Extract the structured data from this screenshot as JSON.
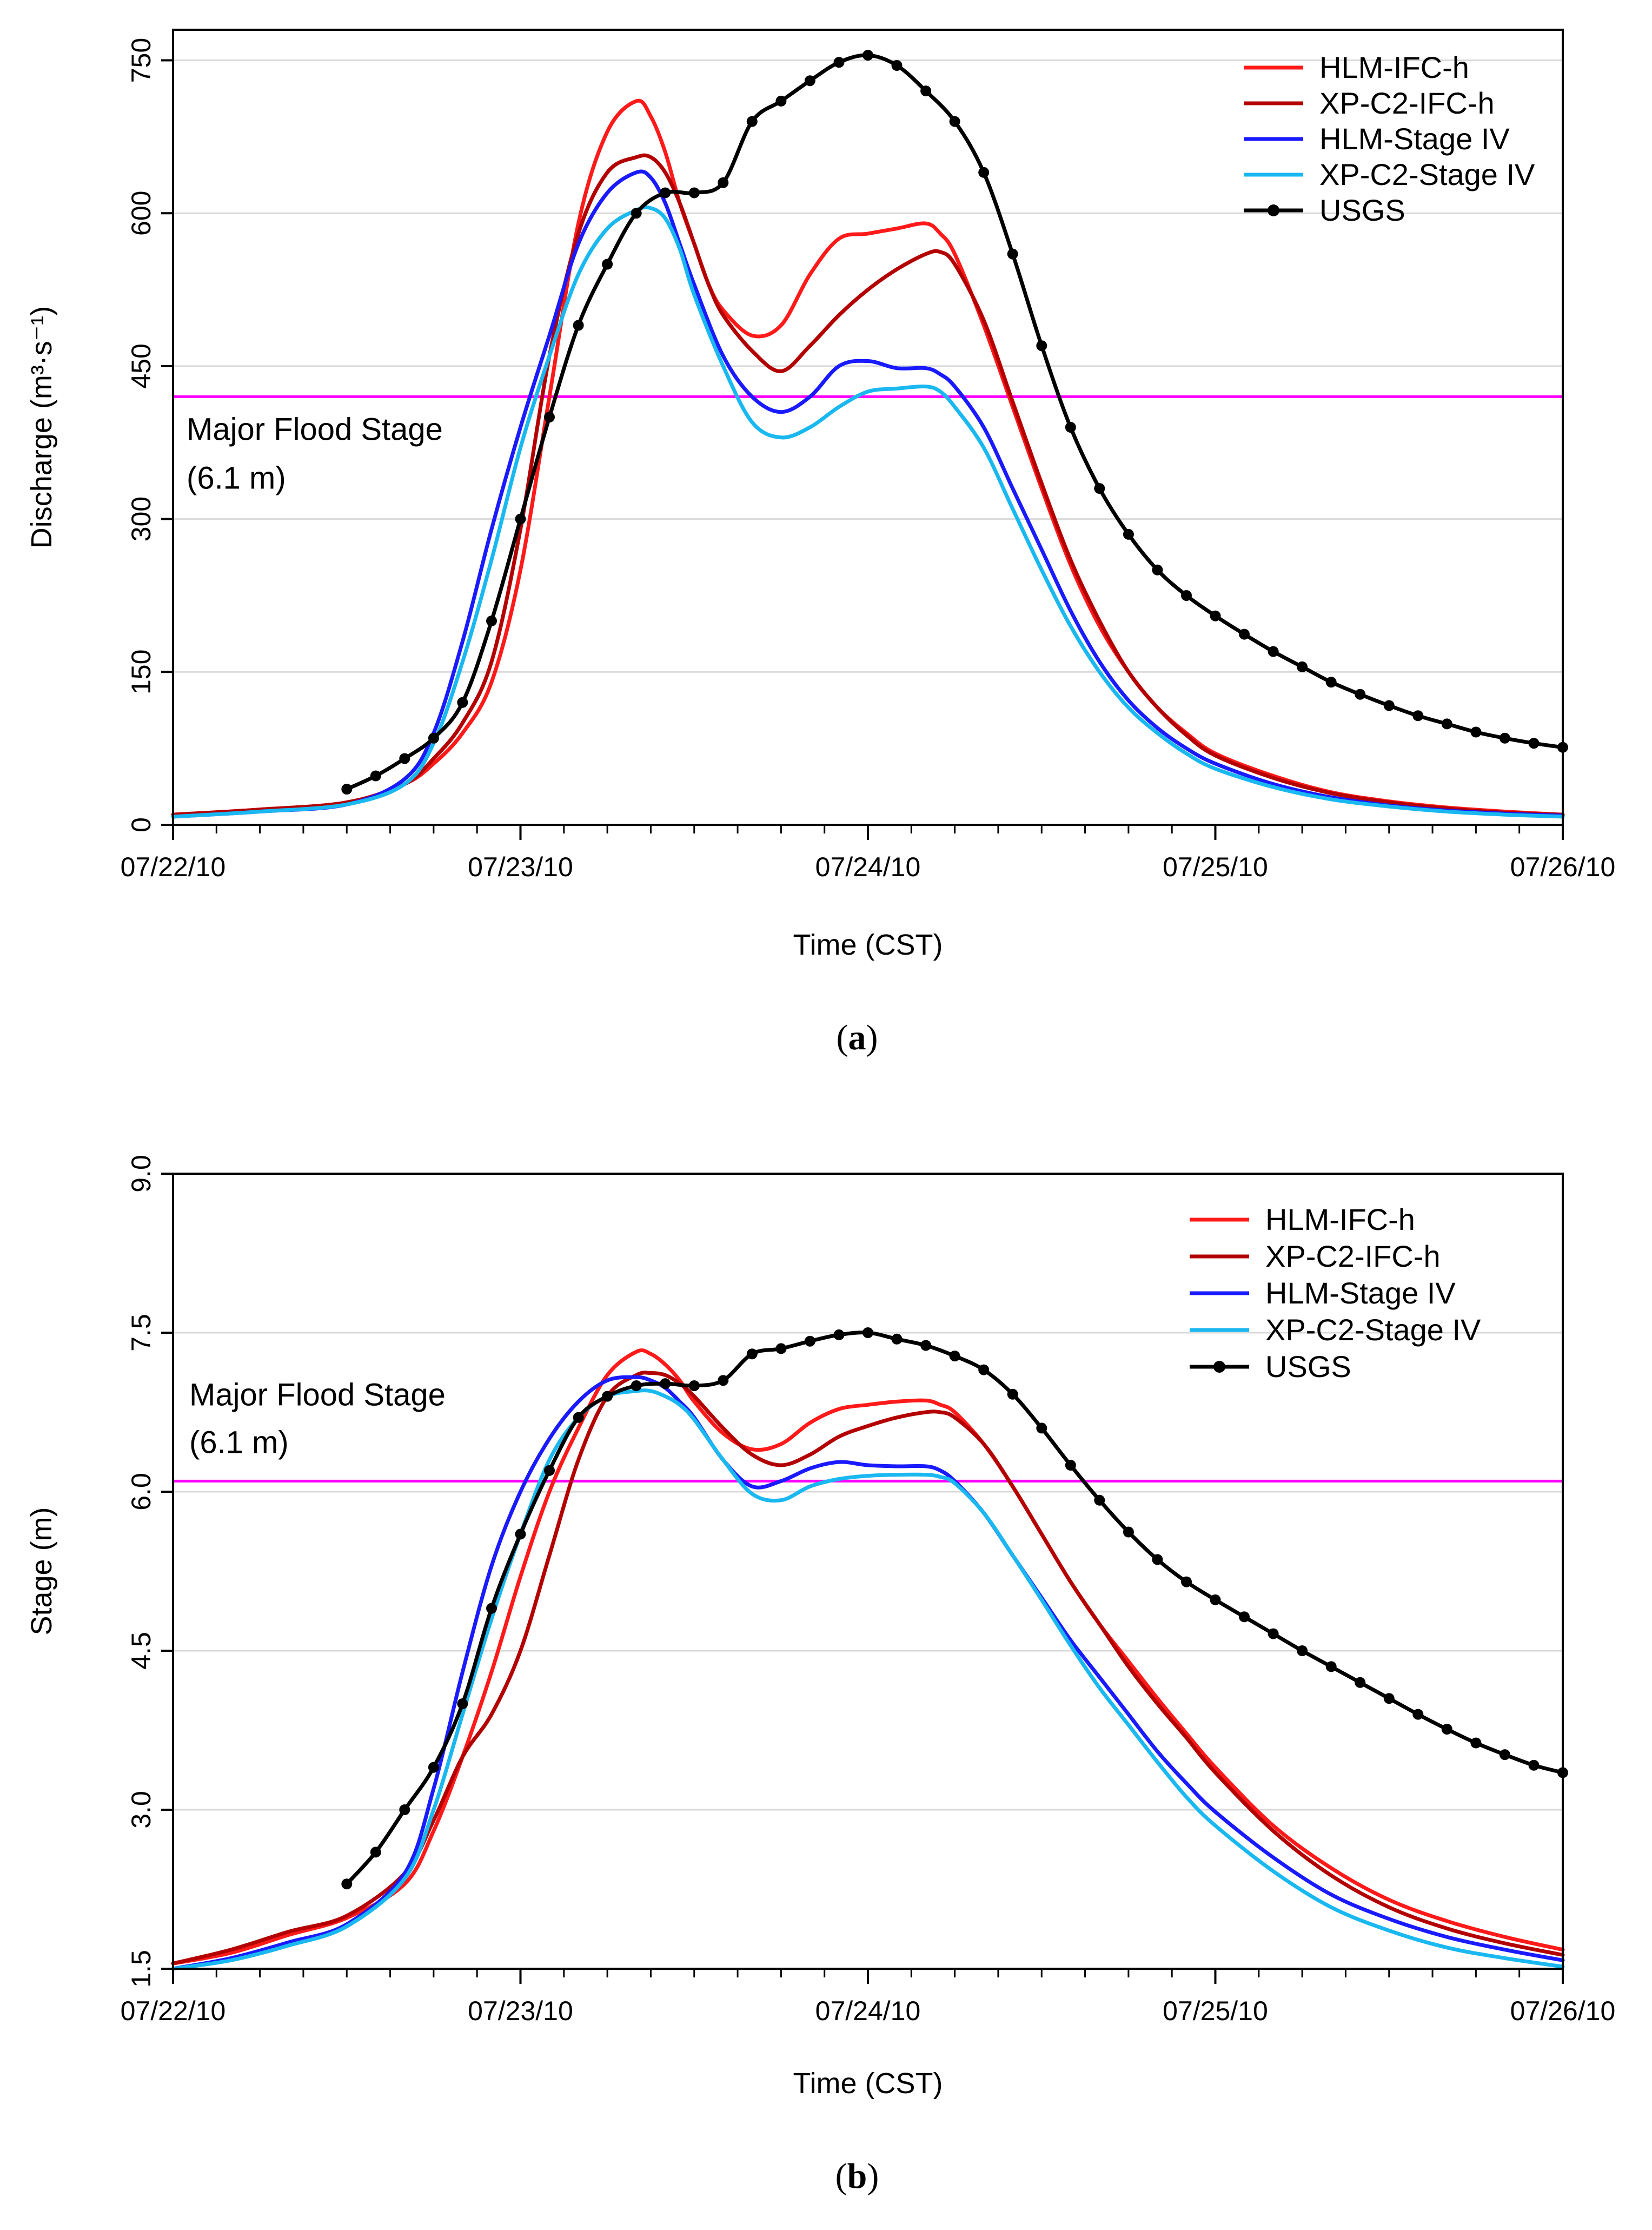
{
  "chart_data": [
    {
      "type": "line",
      "panel_label": "a",
      "caption_open": "(",
      "caption_close": ")",
      "ylabel": "Discharge (m³·s⁻¹)",
      "xlabel": "Time (CST)",
      "xlim": [
        0,
        96
      ],
      "ylim": [
        0,
        780
      ],
      "yticks": [
        "0",
        "150",
        "300",
        "450",
        "600",
        "750"
      ],
      "ytick_values": [
        0,
        150,
        300,
        450,
        600,
        750
      ],
      "xtick_labels": [
        "07/22/10",
        "07/23/10",
        "07/24/10",
        "07/25/10",
        "07/26/10"
      ],
      "xtick_values": [
        0,
        24,
        48,
        72,
        96
      ],
      "threshold": {
        "value": 420,
        "color": "#ff00ff",
        "label_line1": "Major Flood Stage",
        "label_line2": "(6.1 m)"
      },
      "legend_position": "top-right",
      "series": [
        {
          "name": "HLM-IFC-h",
          "color": "#ff1a1a",
          "marker": "none",
          "x": [
            0,
            6,
            12,
            16,
            18,
            20,
            22,
            24,
            26,
            28,
            30,
            32,
            33,
            34,
            35,
            36,
            37,
            38,
            40,
            42,
            44,
            46,
            48,
            50,
            52,
            53,
            54,
            56,
            58,
            60,
            62,
            64,
            66,
            68,
            70,
            72,
            76,
            80,
            84,
            88,
            92,
            96
          ],
          "y": [
            10,
            15,
            22,
            40,
            60,
            90,
            140,
            250,
            420,
            590,
            680,
            710,
            695,
            660,
            610,
            570,
            530,
            505,
            480,
            490,
            540,
            575,
            580,
            585,
            590,
            580,
            560,
            490,
            410,
            330,
            255,
            195,
            150,
            115,
            90,
            70,
            48,
            32,
            23,
            17,
            13,
            10
          ]
        },
        {
          "name": "XP-C2-IFC-h",
          "color": "#b30000",
          "marker": "none",
          "x": [
            0,
            6,
            12,
            16,
            18,
            20,
            22,
            24,
            26,
            28,
            30,
            32,
            33,
            34,
            35,
            36,
            37,
            38,
            40,
            42,
            44,
            46,
            48,
            50,
            52,
            53,
            54,
            56,
            58,
            60,
            62,
            64,
            66,
            68,
            70,
            72,
            76,
            80,
            84,
            88,
            92,
            96
          ],
          "y": [
            10,
            15,
            22,
            40,
            65,
            100,
            160,
            290,
            460,
            580,
            640,
            655,
            655,
            640,
            610,
            570,
            530,
            500,
            465,
            445,
            470,
            500,
            525,
            545,
            560,
            562,
            550,
            495,
            415,
            335,
            260,
            200,
            150,
            115,
            88,
            68,
            46,
            31,
            22,
            16,
            12,
            10
          ]
        },
        {
          "name": "HLM-Stage IV",
          "color": "#1a1aff",
          "marker": "none",
          "x": [
            0,
            6,
            12,
            16,
            18,
            20,
            22,
            24,
            26,
            28,
            30,
            32,
            33,
            34,
            35,
            36,
            38,
            40,
            42,
            44,
            46,
            48,
            50,
            52,
            53,
            54,
            56,
            58,
            60,
            62,
            64,
            66,
            68,
            70,
            72,
            76,
            80,
            84,
            88,
            92,
            96
          ],
          "y": [
            8,
            13,
            20,
            45,
            90,
            180,
            290,
            390,
            480,
            570,
            620,
            640,
            635,
            610,
            570,
            530,
            460,
            420,
            405,
            420,
            450,
            455,
            448,
            448,
            442,
            430,
            390,
            330,
            270,
            210,
            160,
            122,
            95,
            75,
            60,
            40,
            27,
            19,
            14,
            11,
            9
          ]
        },
        {
          "name": "XP-C2-Stage IV",
          "color": "#1ab8f0",
          "marker": "none",
          "x": [
            0,
            6,
            12,
            16,
            18,
            20,
            22,
            24,
            26,
            28,
            30,
            32,
            33,
            34,
            35,
            36,
            38,
            40,
            42,
            44,
            46,
            48,
            50,
            52,
            53,
            54,
            56,
            58,
            60,
            62,
            64,
            66,
            68,
            70,
            72,
            76,
            80,
            84,
            88,
            92,
            96
          ],
          "y": [
            8,
            13,
            20,
            40,
            80,
            160,
            260,
            370,
            460,
            540,
            585,
            603,
            605,
            595,
            565,
            520,
            450,
            395,
            380,
            390,
            410,
            425,
            428,
            430,
            425,
            410,
            370,
            310,
            250,
            195,
            150,
            115,
            90,
            70,
            55,
            37,
            25,
            18,
            13,
            10,
            8
          ]
        },
        {
          "name": "USGS",
          "color": "#000000",
          "marker": "dot",
          "x": [
            12,
            14,
            16,
            18,
            20,
            22,
            24,
            26,
            28,
            30,
            32,
            34,
            36,
            38,
            40,
            42,
            44,
            46,
            48,
            50,
            52,
            54,
            56,
            58,
            60,
            62,
            64,
            66,
            68,
            70,
            72,
            74,
            76,
            78,
            80,
            82,
            84,
            86,
            88,
            90,
            92,
            94,
            96
          ],
          "y": [
            35,
            48,
            65,
            85,
            120,
            200,
            300,
            400,
            490,
            550,
            600,
            620,
            620,
            630,
            690,
            710,
            730,
            748,
            755,
            745,
            720,
            690,
            640,
            560,
            470,
            390,
            330,
            285,
            250,
            225,
            205,
            187,
            170,
            155,
            140,
            128,
            117,
            107,
            99,
            91,
            85,
            80,
            76
          ]
        }
      ]
    },
    {
      "type": "line",
      "panel_label": "b",
      "caption_open": "(",
      "caption_close": ")",
      "ylabel": "Stage (m)",
      "xlabel": "Time (CST)",
      "xlim": [
        0,
        96
      ],
      "ylim": [
        1.5,
        9.0
      ],
      "yticks": [
        "1.5",
        "3.0",
        "4.5",
        "6.0",
        "7.5",
        "9.0"
      ],
      "ytick_values": [
        1.5,
        3.0,
        4.5,
        6.0,
        7.5,
        9.0
      ],
      "xtick_labels": [
        "07/22/10",
        "07/23/10",
        "07/24/10",
        "07/25/10",
        "07/26/10"
      ],
      "xtick_values": [
        0,
        24,
        48,
        72,
        96
      ],
      "threshold": {
        "value": 6.1,
        "color": "#ff00ff",
        "label_line1": "Major Flood Stage",
        "label_line2": "(6.1 m)"
      },
      "legend_position": "top-right",
      "series": [
        {
          "name": "HLM-IFC-h",
          "color": "#ff1a1a",
          "marker": "none",
          "x": [
            0,
            4,
            8,
            12,
            16,
            18,
            20,
            22,
            24,
            26,
            28,
            30,
            32,
            33,
            34,
            35,
            36,
            38,
            40,
            42,
            44,
            46,
            48,
            50,
            52,
            53,
            54,
            56,
            58,
            60,
            62,
            64,
            66,
            68,
            70,
            72,
            76,
            80,
            84,
            88,
            92,
            96
          ],
          "y": [
            1.55,
            1.65,
            1.82,
            1.98,
            2.3,
            2.8,
            3.5,
            4.3,
            5.2,
            6.0,
            6.6,
            7.1,
            7.32,
            7.3,
            7.2,
            7.05,
            6.85,
            6.55,
            6.4,
            6.45,
            6.65,
            6.78,
            6.82,
            6.85,
            6.86,
            6.82,
            6.75,
            6.45,
            6.05,
            5.6,
            5.15,
            4.75,
            4.4,
            4.05,
            3.72,
            3.4,
            2.85,
            2.45,
            2.15,
            1.95,
            1.8,
            1.68
          ]
        },
        {
          "name": "XP-C2-IFC-h",
          "color": "#b30000",
          "marker": "none",
          "x": [
            0,
            4,
            8,
            12,
            16,
            18,
            20,
            22,
            24,
            26,
            28,
            30,
            32,
            33,
            34,
            35,
            36,
            38,
            40,
            42,
            44,
            46,
            48,
            50,
            52,
            53,
            54,
            56,
            58,
            60,
            62,
            64,
            66,
            68,
            70,
            72,
            76,
            80,
            84,
            88,
            92,
            96
          ],
          "y": [
            1.55,
            1.68,
            1.85,
            2.0,
            2.4,
            2.9,
            3.5,
            3.9,
            4.5,
            5.4,
            6.3,
            6.9,
            7.1,
            7.12,
            7.1,
            7.02,
            6.9,
            6.6,
            6.35,
            6.25,
            6.35,
            6.52,
            6.62,
            6.7,
            6.75,
            6.75,
            6.7,
            6.45,
            6.05,
            5.6,
            5.15,
            4.75,
            4.35,
            4.0,
            3.68,
            3.35,
            2.8,
            2.38,
            2.08,
            1.88,
            1.74,
            1.63
          ]
        },
        {
          "name": "HLM-Stage IV",
          "color": "#1a1aff",
          "marker": "none",
          "x": [
            0,
            4,
            8,
            12,
            16,
            18,
            20,
            22,
            24,
            26,
            28,
            30,
            32,
            33,
            34,
            35,
            36,
            38,
            40,
            42,
            44,
            46,
            48,
            50,
            52,
            53,
            54,
            56,
            58,
            60,
            62,
            64,
            66,
            68,
            70,
            72,
            76,
            80,
            84,
            88,
            92,
            96
          ],
          "y": [
            1.5,
            1.6,
            1.75,
            1.92,
            2.4,
            3.2,
            4.3,
            5.3,
            6.0,
            6.5,
            6.85,
            7.05,
            7.08,
            7.05,
            6.98,
            6.85,
            6.7,
            6.3,
            6.05,
            6.1,
            6.22,
            6.28,
            6.25,
            6.24,
            6.24,
            6.2,
            6.1,
            5.8,
            5.4,
            5.0,
            4.6,
            4.25,
            3.9,
            3.55,
            3.25,
            2.98,
            2.55,
            2.2,
            1.97,
            1.8,
            1.68,
            1.58
          ]
        },
        {
          "name": "XP-C2-Stage IV",
          "color": "#1ab8f0",
          "marker": "none",
          "x": [
            0,
            4,
            8,
            12,
            16,
            18,
            20,
            22,
            24,
            26,
            28,
            30,
            32,
            33,
            34,
            35,
            36,
            38,
            40,
            42,
            44,
            46,
            48,
            50,
            52,
            53,
            54,
            56,
            58,
            60,
            62,
            64,
            66,
            68,
            70,
            72,
            76,
            80,
            84,
            88,
            92,
            96
          ],
          "y": [
            1.5,
            1.58,
            1.72,
            1.9,
            2.35,
            3.0,
            3.9,
            4.8,
            5.6,
            6.3,
            6.7,
            6.9,
            6.95,
            6.95,
            6.9,
            6.82,
            6.68,
            6.3,
            5.98,
            5.92,
            6.05,
            6.12,
            6.15,
            6.16,
            6.16,
            6.14,
            6.08,
            5.8,
            5.4,
            4.98,
            4.55,
            4.15,
            3.8,
            3.45,
            3.12,
            2.85,
            2.42,
            2.08,
            1.86,
            1.7,
            1.6,
            1.52
          ]
        },
        {
          "name": "USGS",
          "color": "#000000",
          "marker": "dot",
          "x": [
            12,
            14,
            16,
            18,
            20,
            22,
            24,
            26,
            28,
            30,
            32,
            34,
            36,
            38,
            40,
            42,
            44,
            46,
            48,
            50,
            52,
            54,
            56,
            58,
            60,
            62,
            64,
            66,
            68,
            70,
            72,
            74,
            76,
            78,
            80,
            82,
            84,
            86,
            88,
            90,
            92,
            94,
            96
          ],
          "y": [
            2.3,
            2.6,
            3.0,
            3.4,
            4.0,
            4.9,
            5.6,
            6.2,
            6.7,
            6.9,
            7.0,
            7.02,
            7.0,
            7.05,
            7.3,
            7.35,
            7.42,
            7.48,
            7.5,
            7.44,
            7.38,
            7.28,
            7.15,
            6.92,
            6.6,
            6.25,
            5.92,
            5.62,
            5.36,
            5.15,
            4.98,
            4.82,
            4.66,
            4.5,
            4.35,
            4.2,
            4.05,
            3.9,
            3.76,
            3.63,
            3.52,
            3.42,
            3.35
          ]
        }
      ]
    }
  ]
}
